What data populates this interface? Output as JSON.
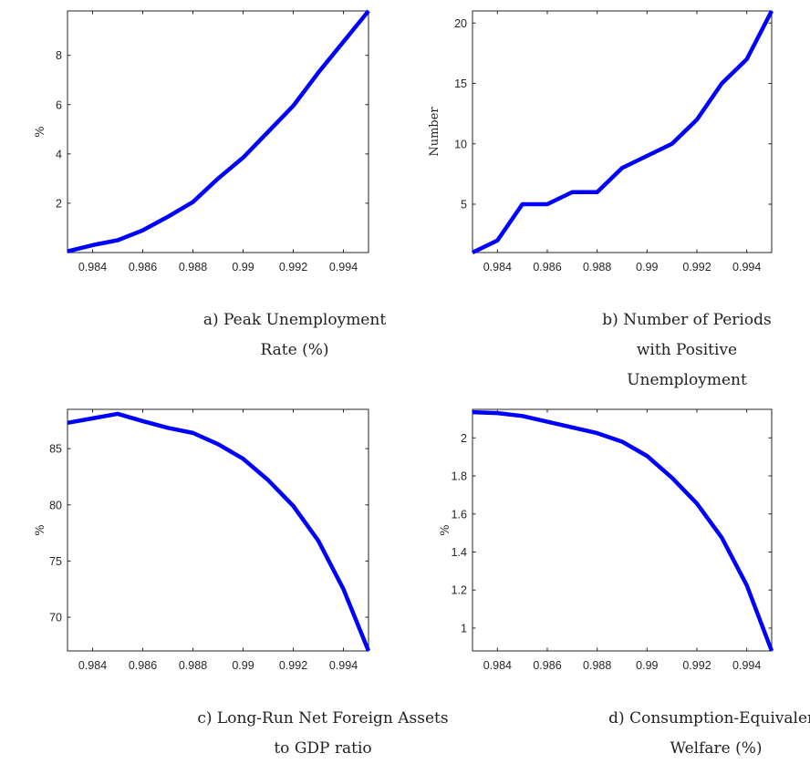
{
  "chart_data": [
    {
      "type": "line",
      "caption": "a) Peak Unemployment Rate (%)",
      "ylabel": "%",
      "xlim": [
        0.983,
        0.995
      ],
      "ylim": [
        0,
        9.8
      ],
      "xticks": [
        0.984,
        0.986,
        0.988,
        0.99,
        0.992,
        0.994
      ],
      "xtick_labels": [
        "0.984",
        "0.986",
        "0.988",
        "0.99",
        "0.992",
        "0.994"
      ],
      "yticks": [
        2,
        4,
        6,
        8
      ],
      "ytick_labels": [
        "2",
        "4",
        "6",
        "8"
      ],
      "series": [
        {
          "color": "#0000ff",
          "x": [
            0.983,
            0.984,
            0.985,
            0.986,
            0.987,
            0.988,
            0.989,
            0.99,
            0.991,
            0.992,
            0.993,
            0.994,
            0.995
          ],
          "y": [
            0.05,
            0.3,
            0.5,
            0.9,
            1.45,
            2.05,
            3.0,
            3.85,
            4.9,
            5.95,
            7.3,
            8.55,
            9.8
          ]
        }
      ]
    },
    {
      "type": "line",
      "caption": "b) Number of Periods with Positive Unemployment",
      "ylabel": "Number",
      "xlim": [
        0.983,
        0.995
      ],
      "ylim": [
        1,
        21
      ],
      "xticks": [
        0.984,
        0.986,
        0.988,
        0.99,
        0.992,
        0.994
      ],
      "xtick_labels": [
        "0.984",
        "0.986",
        "0.988",
        "0.99",
        "0.992",
        "0.994"
      ],
      "yticks": [
        5,
        10,
        15,
        20
      ],
      "ytick_labels": [
        "5",
        "10",
        "15",
        "20"
      ],
      "series": [
        {
          "color": "#0000ff",
          "x": [
            0.983,
            0.984,
            0.985,
            0.986,
            0.987,
            0.988,
            0.989,
            0.99,
            0.991,
            0.992,
            0.993,
            0.994,
            0.995
          ],
          "y": [
            1,
            2,
            5,
            5,
            6,
            6,
            8,
            9,
            10,
            12,
            15,
            17,
            21
          ]
        }
      ]
    },
    {
      "type": "line",
      "caption": "c) Long-Run Net Foreign Assets to GDP ratio",
      "ylabel": "%",
      "xlim": [
        0.983,
        0.995
      ],
      "ylim": [
        67,
        88.5
      ],
      "xticks": [
        0.984,
        0.986,
        0.988,
        0.99,
        0.992,
        0.994
      ],
      "xtick_labels": [
        "0.984",
        "0.986",
        "0.988",
        "0.99",
        "0.992",
        "0.994"
      ],
      "yticks": [
        70,
        75,
        80,
        85
      ],
      "ytick_labels": [
        "70",
        "75",
        "80",
        "85"
      ],
      "series": [
        {
          "color": "#0000ff",
          "x": [
            0.983,
            0.984,
            0.985,
            0.986,
            0.987,
            0.988,
            0.989,
            0.99,
            0.991,
            0.992,
            0.993,
            0.994,
            0.995
          ],
          "y": [
            87.3,
            87.7,
            88.1,
            87.45,
            86.85,
            86.4,
            85.4,
            84.1,
            82.2,
            79.9,
            76.8,
            72.5,
            67.0
          ]
        }
      ]
    },
    {
      "type": "line",
      "caption": "d) Consumption-Equivalent Welfare (%)",
      "ylabel": "%",
      "xlim": [
        0.983,
        0.995
      ],
      "ylim": [
        0.88,
        2.15
      ],
      "xticks": [
        0.984,
        0.986,
        0.988,
        0.99,
        0.992,
        0.994
      ],
      "xtick_labels": [
        "0.984",
        "0.986",
        "0.988",
        "0.99",
        "0.992",
        "0.994"
      ],
      "yticks": [
        1,
        1.2,
        1.4,
        1.6,
        1.8,
        2
      ],
      "ytick_labels": [
        "1",
        "1.2",
        "1.4",
        "1.6",
        "1.8",
        "2"
      ],
      "series": [
        {
          "color": "#0000ff",
          "x": [
            0.983,
            0.984,
            0.985,
            0.986,
            0.987,
            0.988,
            0.989,
            0.99,
            0.991,
            0.992,
            0.993,
            0.994,
            0.995
          ],
          "y": [
            2.135,
            2.13,
            2.115,
            2.085,
            2.055,
            2.025,
            1.98,
            1.905,
            1.79,
            1.655,
            1.475,
            1.225,
            0.88
          ]
        }
      ]
    }
  ]
}
